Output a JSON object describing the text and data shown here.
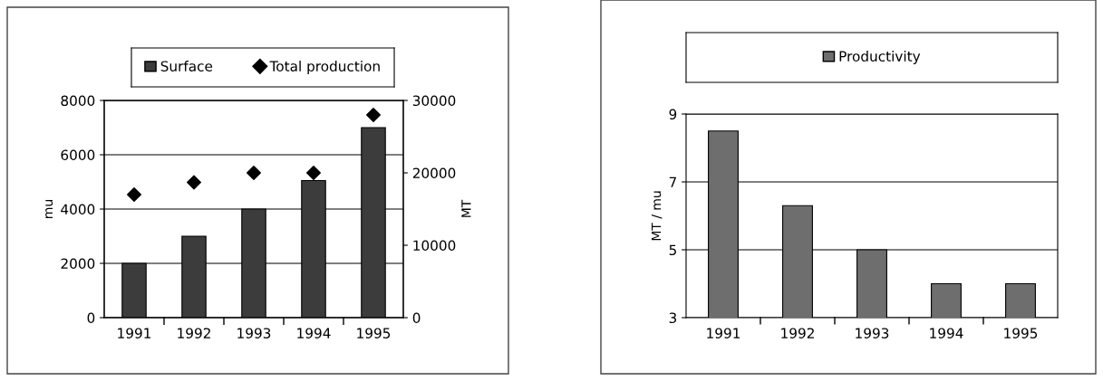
{
  "chart_data": [
    {
      "type": "bar",
      "categories": [
        "1991",
        "1992",
        "1993",
        "1994",
        "1995"
      ],
      "ylabel": "mu",
      "y2label": "MT",
      "ylim": [
        0,
        8000
      ],
      "yticks": [
        0,
        2000,
        4000,
        6000,
        8000
      ],
      "y2lim": [
        0,
        30000
      ],
      "y2ticks": [
        0,
        10000,
        20000,
        30000
      ],
      "grid": "y",
      "legend": "top",
      "series": [
        {
          "name": "Surface",
          "color": "#3c3c3c",
          "values": [
            2000,
            3000,
            4000,
            5050,
            7000
          ]
        },
        {
          "name": "Total production",
          "type": "scatter",
          "axis": "y2",
          "marker": "diamond",
          "color": "#000000",
          "values": [
            17000,
            18700,
            20000,
            20000,
            28000
          ]
        }
      ]
    },
    {
      "type": "bar",
      "categories": [
        "1991",
        "1992",
        "1993",
        "1994",
        "1995"
      ],
      "ylabel": "MT / mu",
      "ylim": [
        3,
        9
      ],
      "yticks": [
        3,
        5,
        7,
        9
      ],
      "grid": "y",
      "legend": "top",
      "series": [
        {
          "name": "Productivity",
          "color": "#6e6e6e",
          "values": [
            8.5,
            6.3,
            5.0,
            4.0,
            4.0
          ]
        }
      ]
    }
  ]
}
